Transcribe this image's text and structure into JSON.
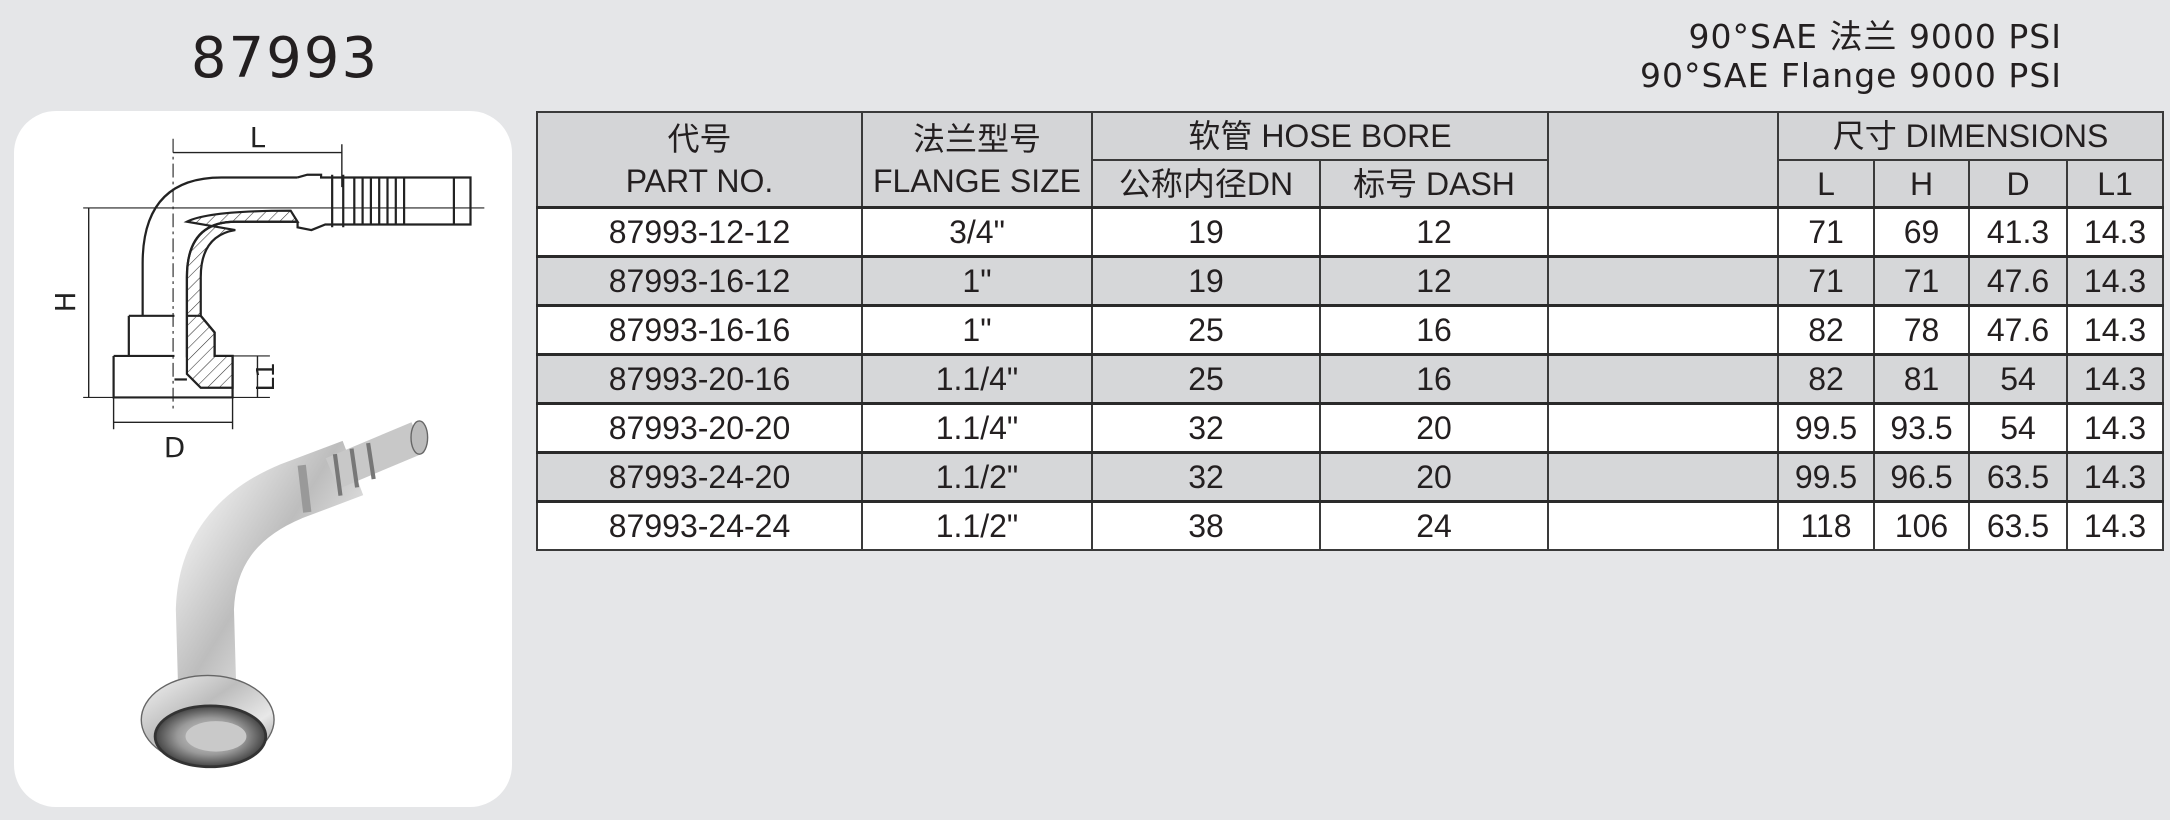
{
  "title": "87993",
  "spec_cn": "90°SAE 法兰 9000 PSI",
  "spec_en": "90°SAE Flange 9000 PSI",
  "diagram": {
    "labels": {
      "L": "L",
      "H": "H",
      "D": "D",
      "L1": "L1"
    }
  },
  "table": {
    "headers": {
      "part_cn": "代号",
      "part_en": "PART NO.",
      "flange_cn": "法兰型号",
      "flange_en": "FLANGE  SIZE",
      "hose": "软管 HOSE BORE",
      "dn": "公称内径DN",
      "dash": "标号  DASH",
      "blank": "",
      "dims": "尺寸  DIMENSIONS",
      "L": "L",
      "H": "H",
      "D": "D",
      "L1": "L1"
    },
    "rows": [
      {
        "part": "87993-12-12",
        "flange": "3/4\"",
        "dn": "19",
        "dash": "12",
        "blank": "",
        "L": "71",
        "H": "69",
        "D": "41.3",
        "L1": "14.3"
      },
      {
        "part": "87993-16-12",
        "flange": "1\"",
        "dn": "19",
        "dash": "12",
        "blank": "",
        "L": "71",
        "H": "71",
        "D": "47.6",
        "L1": "14.3"
      },
      {
        "part": "87993-16-16",
        "flange": "1\"",
        "dn": "25",
        "dash": "16",
        "blank": "",
        "L": "82",
        "H": "78",
        "D": "47.6",
        "L1": "14.3"
      },
      {
        "part": "87993-20-16",
        "flange": "1.1/4\"",
        "dn": "25",
        "dash": "16",
        "blank": "",
        "L": "82",
        "H": "81",
        "D": "54",
        "L1": "14.3"
      },
      {
        "part": "87993-20-20",
        "flange": "1.1/4\"",
        "dn": "32",
        "dash": "20",
        "blank": "",
        "L": "99.5",
        "H": "93.5",
        "D": "54",
        "L1": "14.3"
      },
      {
        "part": "87993-24-20",
        "flange": "1.1/2\"",
        "dn": "32",
        "dash": "20",
        "blank": "",
        "L": "99.5",
        "H": "96.5",
        "D": "63.5",
        "L1": "14.3"
      },
      {
        "part": "87993-24-24",
        "flange": "1.1/2\"",
        "dn": "38",
        "dash": "24",
        "blank": "",
        "L": "118",
        "H": "106",
        "D": "63.5",
        "L1": "14.3"
      }
    ]
  },
  "colors": {
    "background": "#e5e6e8",
    "header": "#d4d5d7",
    "stripe": "#d6d7d9",
    "text": "#231f20"
  }
}
